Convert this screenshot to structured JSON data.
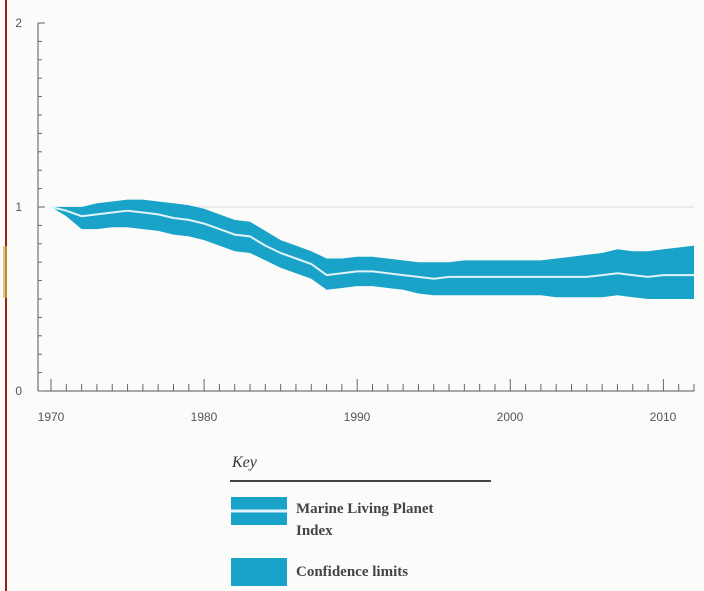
{
  "chart_data": {
    "type": "area",
    "xlim": [
      1970,
      2012
    ],
    "ylim": [
      0,
      2
    ],
    "x_ticks": [
      1970,
      1980,
      1990,
      2000,
      2010
    ],
    "y_ticks": [
      0,
      1,
      2
    ],
    "x_tick_labels": [
      "1970",
      "1980",
      "1990",
      "2000",
      "2010"
    ],
    "y_tick_labels": [
      "0",
      "1",
      "2"
    ],
    "reference_line": 1,
    "colors": {
      "band": "#1aa3c8",
      "index_line": "#dff3f9",
      "axis": "#555555",
      "frame_left": "#9b1b1b"
    },
    "series": [
      {
        "name": "Marine Living Planet Index",
        "x": [
          1970,
          1971,
          1972,
          1973,
          1974,
          1975,
          1976,
          1977,
          1978,
          1979,
          1980,
          1981,
          1982,
          1983,
          1984,
          1985,
          1986,
          1987,
          1988,
          1989,
          1990,
          1991,
          1992,
          1993,
          1994,
          1995,
          1996,
          1997,
          1998,
          1999,
          2000,
          2001,
          2002,
          2003,
          2004,
          2005,
          2006,
          2007,
          2008,
          2009,
          2010,
          2011,
          2012
        ],
        "values": [
          1.0,
          0.98,
          0.95,
          0.96,
          0.97,
          0.98,
          0.97,
          0.96,
          0.94,
          0.93,
          0.91,
          0.88,
          0.85,
          0.84,
          0.79,
          0.75,
          0.72,
          0.69,
          0.63,
          0.64,
          0.65,
          0.65,
          0.64,
          0.63,
          0.62,
          0.61,
          0.62,
          0.62,
          0.62,
          0.62,
          0.62,
          0.62,
          0.62,
          0.62,
          0.62,
          0.62,
          0.63,
          0.64,
          0.63,
          0.62,
          0.63,
          0.63,
          0.63
        ],
        "lower": [
          1.0,
          0.95,
          0.88,
          0.88,
          0.89,
          0.89,
          0.88,
          0.87,
          0.85,
          0.84,
          0.82,
          0.79,
          0.76,
          0.75,
          0.71,
          0.67,
          0.64,
          0.61,
          0.55,
          0.56,
          0.57,
          0.57,
          0.56,
          0.55,
          0.53,
          0.52,
          0.52,
          0.52,
          0.52,
          0.52,
          0.52,
          0.52,
          0.52,
          0.51,
          0.51,
          0.51,
          0.51,
          0.52,
          0.51,
          0.5,
          0.5,
          0.5,
          0.5
        ],
        "upper": [
          1.0,
          1.0,
          1.0,
          1.02,
          1.03,
          1.04,
          1.04,
          1.03,
          1.02,
          1.01,
          0.99,
          0.96,
          0.93,
          0.92,
          0.87,
          0.82,
          0.79,
          0.76,
          0.72,
          0.72,
          0.73,
          0.73,
          0.72,
          0.71,
          0.7,
          0.7,
          0.7,
          0.71,
          0.71,
          0.71,
          0.71,
          0.71,
          0.71,
          0.72,
          0.73,
          0.74,
          0.75,
          0.77,
          0.76,
          0.76,
          0.77,
          0.78,
          0.79
        ]
      }
    ],
    "legend": {
      "title": "Key",
      "entries": [
        {
          "label_lines": [
            "Marine Living Planet",
            "Index"
          ],
          "symbol": "band-with-line"
        },
        {
          "label_lines": [
            "Confidence limits"
          ],
          "symbol": "band"
        }
      ]
    }
  }
}
